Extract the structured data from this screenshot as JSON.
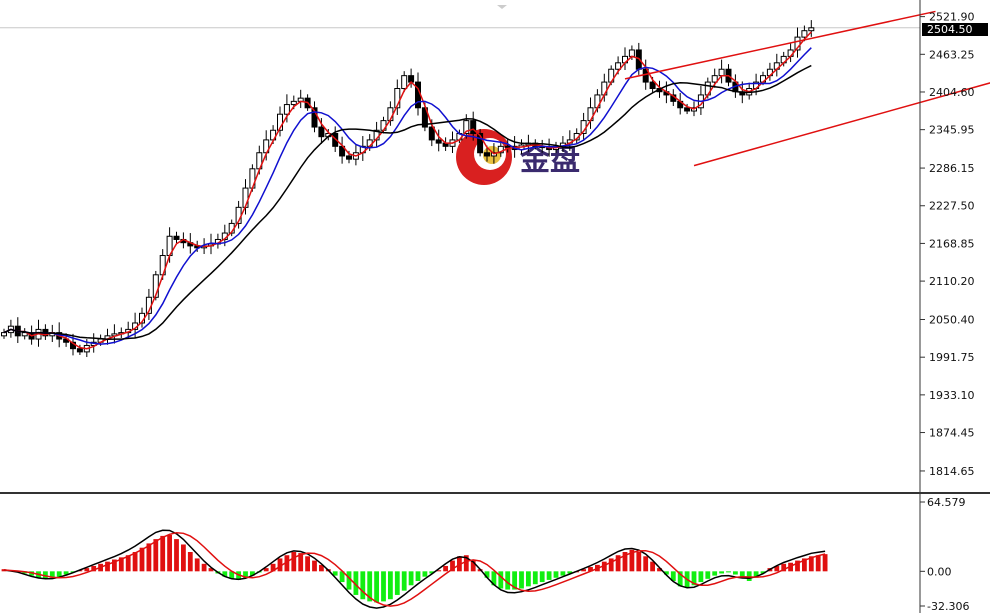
{
  "colors": {
    "background": "#ffffff",
    "axis": "#333333",
    "candle": "#000000",
    "ma_fast": "#e01010",
    "ma_mid": "#1010d0",
    "ma_slow": "#000000",
    "channel": "#e01010",
    "macd_pos": "#e01010",
    "macd_neg": "#11ee11",
    "current_price_bg": "#000000",
    "current_price_fg": "#ffffff",
    "logo_red": "#d92020",
    "logo_text": "#3a2a6e"
  },
  "logo": {
    "text": "金盘",
    "icon": "gold-disc-logo-icon"
  },
  "current_price_label": "2504.50",
  "chart_data": [
    {
      "type": "candlestick",
      "title": "",
      "ylim": [
        1785.0,
        2540.0
      ],
      "y_ticks": [
        "2521.90",
        "2463.25",
        "2404.60",
        "2345.95",
        "2286.15",
        "2227.50",
        "2168.85",
        "2110.20",
        "2050.40",
        "1991.75",
        "1933.10",
        "1874.45",
        "1814.65"
      ],
      "current_price": 2504.5,
      "overlays": [
        "moving-average-fast (red)",
        "moving-average-mid (blue)",
        "moving-average-slow (black)"
      ],
      "channel_lines": [
        {
          "name": "upper channel",
          "from": [
            90,
            2425
          ],
          "to": [
            135,
            2530
          ]
        },
        {
          "name": "lower channel",
          "from": [
            100,
            2290
          ],
          "to": [
            145,
            2425
          ]
        }
      ],
      "series_close": [
        2030,
        2040,
        2025,
        2030,
        2020,
        2035,
        2025,
        2030,
        2020,
        2015,
        2005,
        2000,
        2010,
        2015,
        2020,
        2025,
        2028,
        2030,
        2035,
        2045,
        2060,
        2085,
        2120,
        2150,
        2180,
        2175,
        2170,
        2165,
        2162,
        2165,
        2168,
        2175,
        2185,
        2200,
        2225,
        2255,
        2285,
        2310,
        2330,
        2345,
        2370,
        2385,
        2390,
        2395,
        2380,
        2350,
        2335,
        2340,
        2320,
        2305,
        2300,
        2310,
        2320,
        2330,
        2345,
        2360,
        2380,
        2410,
        2430,
        2420,
        2380,
        2350,
        2330,
        2325,
        2320,
        2330,
        2340,
        2360,
        2340,
        2310,
        2305,
        2310,
        2320,
        2320,
        2315,
        2322,
        2325,
        2320,
        2318,
        2315,
        2320,
        2325,
        2330,
        2340,
        2360,
        2380,
        2400,
        2420,
        2440,
        2450,
        2460,
        2470,
        2440,
        2420,
        2410,
        2405,
        2400,
        2390,
        2380,
        2375,
        2380,
        2400,
        2420,
        2430,
        2440,
        2420,
        2405,
        2400,
        2410,
        2420,
        2430,
        2440,
        2450,
        2460,
        2470,
        2490,
        2500,
        2504.5
      ]
    },
    {
      "type": "histogram",
      "title": "",
      "ylim": [
        -32.306,
        64.579
      ],
      "y_ticks": [
        "64.579",
        "0.00",
        "-32.306"
      ],
      "overlays": [
        "macd-line (black)",
        "signal-line (red)"
      ],
      "values": [
        2,
        1,
        0,
        -2,
        -4,
        -6,
        -7,
        -6,
        -5,
        -3,
        -1,
        1,
        3,
        5,
        7,
        9,
        11,
        13,
        15,
        18,
        22,
        26,
        30,
        33,
        34,
        30,
        25,
        18,
        12,
        7,
        3,
        -2,
        -5,
        -7,
        -8,
        -6,
        -4,
        -1,
        3,
        7,
        12,
        15,
        18,
        17,
        14,
        10,
        6,
        2,
        -4,
        -10,
        -17,
        -22,
        -26,
        -28,
        -29,
        -28,
        -26,
        -22,
        -18,
        -13,
        -9,
        -5,
        -2,
        1,
        5,
        10,
        14,
        15,
        10,
        2,
        -6,
        -13,
        -16,
        -17,
        -17,
        -16,
        -14,
        -12,
        -10,
        -8,
        -6,
        -4,
        -2,
        0,
        2,
        4,
        6,
        9,
        12,
        15,
        18,
        20,
        18,
        14,
        9,
        3,
        -3,
        -9,
        -14,
        -15,
        -13,
        -10,
        -7,
        -4,
        -2,
        -1,
        -3,
        -6,
        -9,
        -6,
        -2,
        3,
        5,
        7,
        8,
        10,
        12,
        14,
        15,
        16
      ]
    }
  ]
}
